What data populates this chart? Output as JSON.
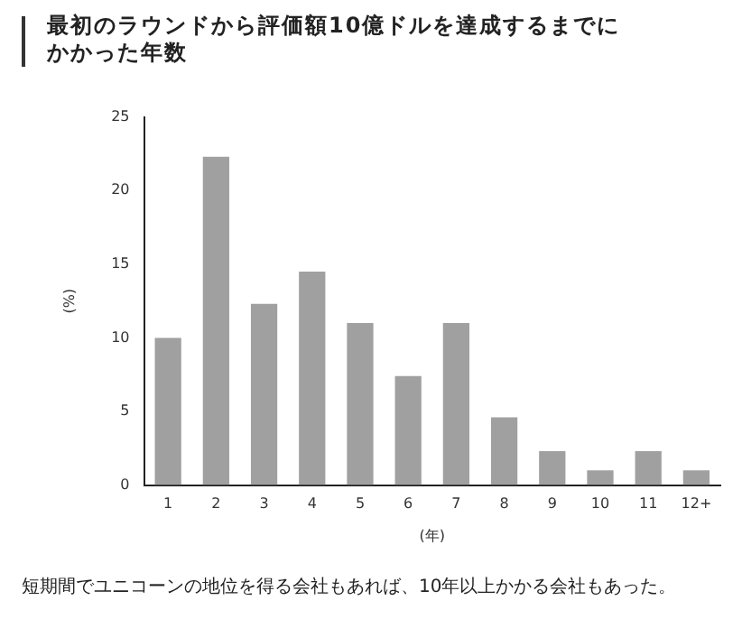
{
  "chart_data": {
    "type": "bar",
    "title": "最初のラウンドから評価額10億ドルを達成するまでにかかった年数",
    "categories": [
      "1",
      "2",
      "3",
      "4",
      "5",
      "6",
      "7",
      "8",
      "9",
      "10",
      "11",
      "12+"
    ],
    "values": [
      10,
      22.3,
      12.3,
      14.5,
      11,
      7.4,
      11,
      4.6,
      2.3,
      1,
      2.3,
      1
    ],
    "color": "#a0a0a0",
    "ylim": [
      0,
      25
    ],
    "yticks": [
      0,
      5,
      10,
      15,
      20,
      25
    ],
    "grid": false,
    "legend": false,
    "xlabel": "(年)",
    "ylabel": "(%)",
    "annotations": [
      "短期間でユニコーンの地位を得る会社もあれば、10年以上かかる会社もあった。"
    ]
  }
}
